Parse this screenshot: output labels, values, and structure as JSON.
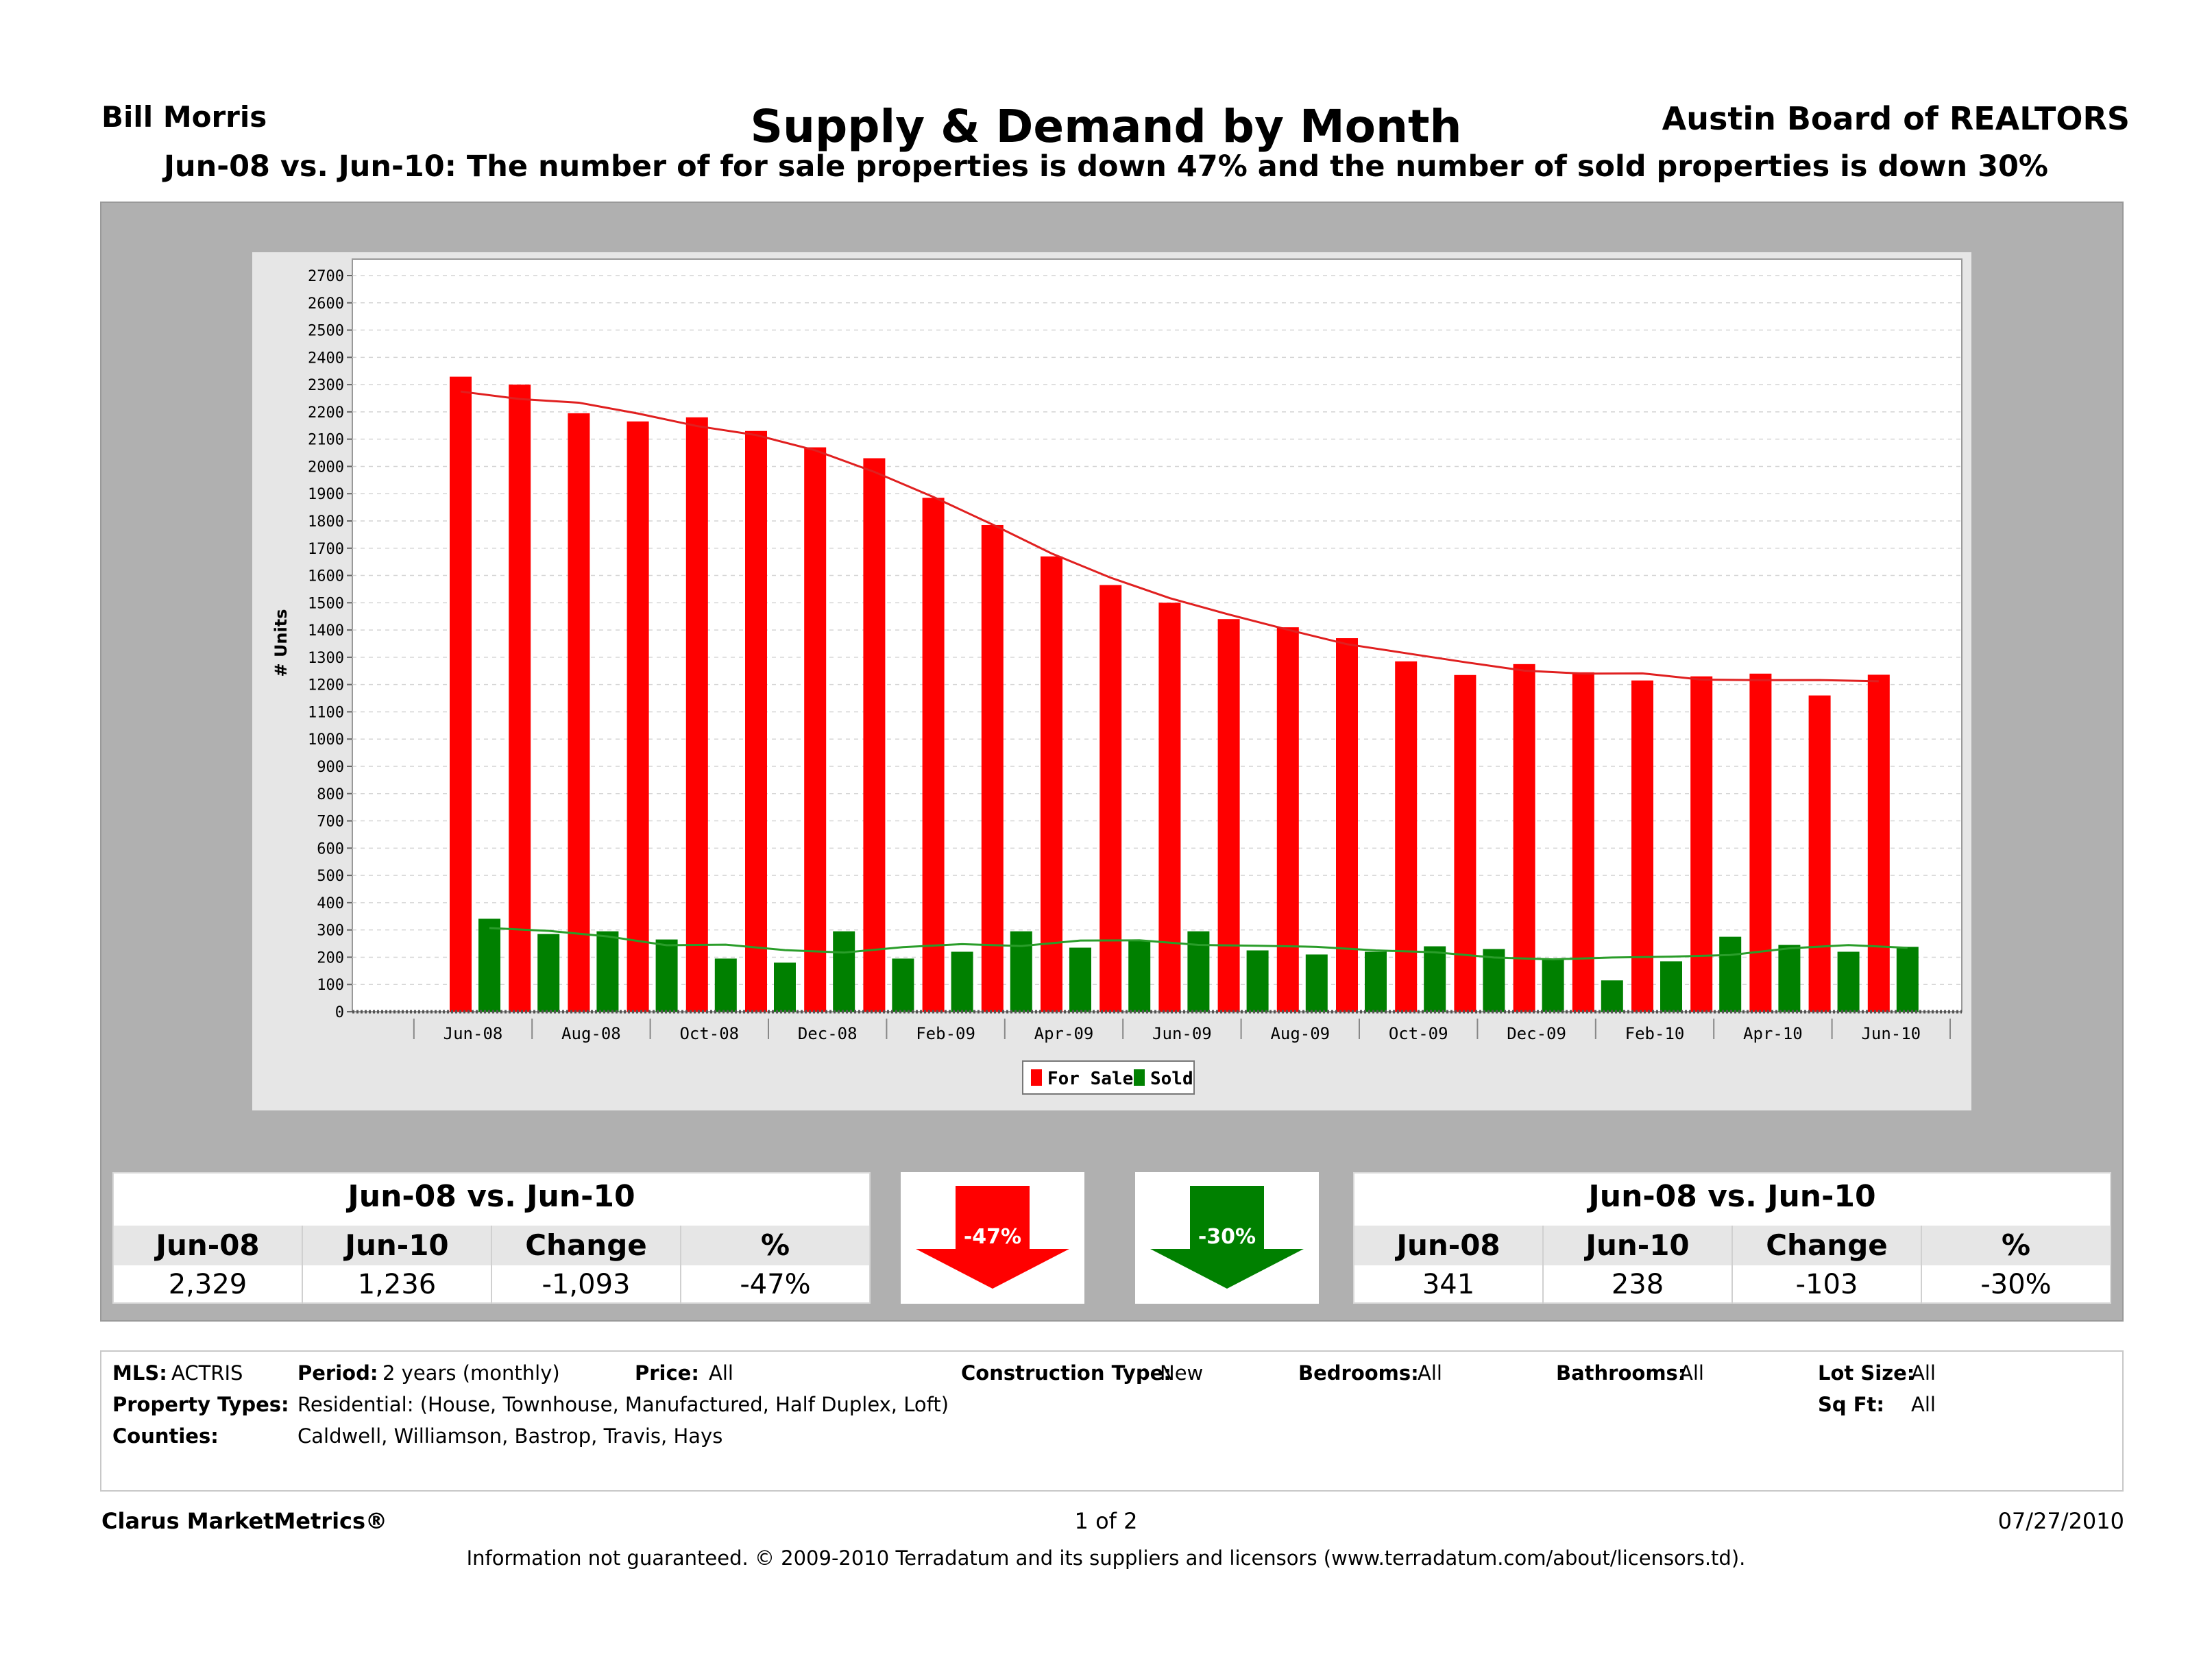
{
  "header": {
    "agent": "Bill Morris",
    "title": "Supply & Demand by Month",
    "board": "Austin Board of REALTORS",
    "subtitle": "Jun-08 vs. Jun-10:  The number of for sale properties is down 47% and the number of sold properties is down 30%"
  },
  "chart_data": {
    "type": "bar",
    "title": "",
    "xlabel": "",
    "ylabel": "# Units",
    "ylim": [
      0,
      2700
    ],
    "ytick_step": 100,
    "grid": true,
    "legend_position": "bottom-center",
    "categories": [
      "Jun-08",
      "Jul-08",
      "Aug-08",
      "Sep-08",
      "Oct-08",
      "Nov-08",
      "Dec-08",
      "Jan-09",
      "Feb-09",
      "Mar-09",
      "Apr-09",
      "May-09",
      "Jun-09",
      "Jul-09",
      "Aug-09",
      "Sep-09",
      "Oct-09",
      "Nov-09",
      "Dec-09",
      "Jan-10",
      "Feb-10",
      "Mar-10",
      "Apr-10",
      "May-10",
      "Jun-10"
    ],
    "tick_labels": [
      "Jun-08",
      "Aug-08",
      "Oct-08",
      "Dec-08",
      "Feb-09",
      "Apr-09",
      "Jun-09",
      "Aug-09",
      "Oct-09",
      "Dec-09",
      "Feb-10",
      "Apr-10",
      "Jun-10"
    ],
    "series": [
      {
        "name": "For Sale",
        "color": "#ff0000",
        "values": [
          2329,
          2300,
          2195,
          2165,
          2180,
          2130,
          2070,
          2030,
          1885,
          1785,
          1670,
          1565,
          1500,
          1440,
          1410,
          1370,
          1285,
          1235,
          1275,
          1245,
          1215,
          1230,
          1240,
          1160,
          1236
        ],
        "trend": true
      },
      {
        "name": "Sold",
        "color": "#008000",
        "values": [
          341,
          285,
          295,
          265,
          195,
          180,
          295,
          195,
          220,
          295,
          235,
          260,
          295,
          225,
          210,
          220,
          240,
          230,
          190,
          115,
          185,
          275,
          245,
          220,
          238
        ],
        "trend": true
      }
    ]
  },
  "stats": {
    "for_sale": {
      "heading": "Jun-08 vs. Jun-10",
      "cols": [
        "Jun-08",
        "Jun-10",
        "Change",
        "%"
      ],
      "vals": [
        "2,329",
        "1,236",
        "-1,093",
        "-47%"
      ],
      "arrow_label": "-47%",
      "arrow_color": "#ff0000"
    },
    "sold": {
      "heading": "Jun-08 vs. Jun-10",
      "cols": [
        "Jun-08",
        "Jun-10",
        "Change",
        "%"
      ],
      "vals": [
        "341",
        "238",
        "-103",
        "-30%"
      ],
      "arrow_label": "-30%",
      "arrow_color": "#008000"
    }
  },
  "criteria": {
    "mls_label": "MLS:",
    "mls": "ACTRIS",
    "period_label": "Period:",
    "period": "2 years (monthly)",
    "price_label": "Price:",
    "price": "All",
    "construction_label": "Construction Type:",
    "construction": "New",
    "bedrooms_label": "Bedrooms:",
    "bedrooms": "All",
    "bathrooms_label": "Bathrooms:",
    "bathrooms": "All",
    "lotsize_label": "Lot Size:",
    "lotsize": "All",
    "ptypes_label": "Property Types:",
    "ptypes": "Residential: (House, Townhouse, Manufactured, Half Duplex, Loft)",
    "sqft_label": "Sq Ft:",
    "sqft": "All",
    "counties_label": "Counties:",
    "counties": "Caldwell, Williamson, Bastrop, Travis, Hays"
  },
  "footer": {
    "brand": "Clarus MarketMetrics®",
    "page": "1 of 2",
    "date": "07/27/2010",
    "disclaimer": "Information not guaranteed.  © 2009-2010 Terradatum and its suppliers and licensors (www.terradatum.com/about/licensors.td)."
  }
}
